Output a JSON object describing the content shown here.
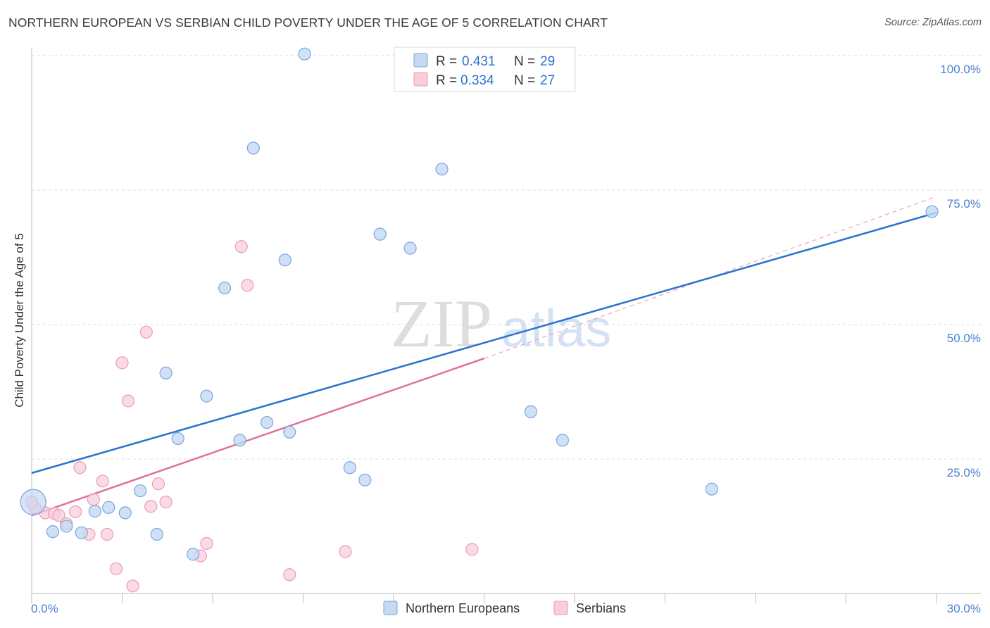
{
  "header": {
    "title": "NORTHERN EUROPEAN VS SERBIAN CHILD POVERTY UNDER THE AGE OF 5 CORRELATION CHART",
    "source": "Source: ZipAtlas.com"
  },
  "watermark": {
    "zip": "ZIP",
    "atlas": "atlas"
  },
  "legend": {
    "r_label": "R =",
    "n_label": "N =",
    "rows": [
      {
        "r": "0.431",
        "n": "29"
      },
      {
        "r": "0.334",
        "n": "27"
      }
    ]
  },
  "colors": {
    "blue_fill": "#c5d9f2",
    "blue_stroke": "#7aa6e0",
    "blue_line": "#2a72d0",
    "pink_fill": "#f8cedb",
    "pink_stroke": "#ee9bb5",
    "pink_line": "#e0709a",
    "axis_text": "#4a7fd0"
  },
  "chart_data": {
    "type": "scatter",
    "title": "NORTHERN EUROPEAN VS SERBIAN CHILD POVERTY UNDER THE AGE OF 5 CORRELATION CHART",
    "xlabel": "",
    "ylabel": "Child Poverty Under the Age of 5",
    "xlim": [
      0,
      30
    ],
    "ylim": [
      0,
      100
    ],
    "x_tick_labels": [
      "0.0%",
      "30.0%"
    ],
    "y_tick_labels": [
      "100.0%",
      "75.0%",
      "50.0%",
      "25.0%"
    ],
    "y_tick_values": [
      100,
      75,
      50,
      25
    ],
    "grid": true,
    "legend_position": "top-center",
    "series": [
      {
        "name": "Northern Europeans",
        "color": "#7aa6e0",
        "points": [
          [
            0.05,
            17.0,
            "large"
          ],
          [
            0.7,
            11.5
          ],
          [
            1.15,
            12.5
          ],
          [
            1.65,
            11.3
          ],
          [
            2.1,
            15.3
          ],
          [
            2.55,
            16.0
          ],
          [
            3.1,
            15.0
          ],
          [
            3.6,
            19.1
          ],
          [
            4.15,
            11.0
          ],
          [
            4.45,
            41.0
          ],
          [
            4.85,
            28.8
          ],
          [
            5.35,
            7.3
          ],
          [
            5.8,
            36.7
          ],
          [
            6.4,
            56.8
          ],
          [
            6.9,
            28.5
          ],
          [
            7.35,
            82.8
          ],
          [
            7.8,
            31.8
          ],
          [
            8.4,
            62.0
          ],
          [
            8.55,
            30.0
          ],
          [
            9.05,
            100.3
          ],
          [
            10.55,
            23.4
          ],
          [
            11.05,
            21.1
          ],
          [
            11.55,
            66.8
          ],
          [
            12.55,
            64.2
          ],
          [
            13.6,
            78.9
          ],
          [
            16.55,
            33.8
          ],
          [
            17.6,
            28.5
          ],
          [
            22.55,
            19.4
          ],
          [
            29.85,
            71.0
          ]
        ]
      },
      {
        "name": "Serbians",
        "color": "#ee9bb5",
        "points": [
          [
            0.1,
            16.0
          ],
          [
            0.45,
            15.0
          ],
          [
            0.75,
            14.9
          ],
          [
            0.9,
            14.5
          ],
          [
            1.15,
            13.0
          ],
          [
            1.45,
            15.2
          ],
          [
            1.6,
            23.4
          ],
          [
            1.9,
            11.0
          ],
          [
            2.05,
            17.5
          ],
          [
            2.35,
            20.9
          ],
          [
            2.5,
            11.0
          ],
          [
            2.8,
            4.6
          ],
          [
            3.0,
            42.9
          ],
          [
            3.2,
            35.8
          ],
          [
            3.35,
            1.4
          ],
          [
            3.8,
            48.6
          ],
          [
            3.95,
            16.2
          ],
          [
            4.2,
            20.4
          ],
          [
            4.45,
            17.0
          ],
          [
            5.6,
            7.0
          ],
          [
            5.8,
            9.3
          ],
          [
            6.95,
            64.5
          ],
          [
            7.15,
            57.3
          ],
          [
            8.55,
            3.5
          ],
          [
            10.4,
            7.8
          ],
          [
            14.6,
            8.2
          ],
          [
            0.0,
            17.0
          ]
        ]
      }
    ],
    "trendlines": [
      {
        "series": "Northern Europeans",
        "x": [
          0,
          30
        ],
        "y": [
          22.4,
          70.8
        ]
      },
      {
        "series": "Serbians",
        "x": [
          0,
          15
        ],
        "y": [
          14.5,
          43.7
        ]
      },
      {
        "series": "Serbians (extrapolated)",
        "x": [
          15,
          30
        ],
        "y": [
          43.7,
          73.8
        ]
      }
    ]
  },
  "bottom_legend": [
    {
      "label": "Northern Europeans"
    },
    {
      "label": "Serbians"
    }
  ]
}
